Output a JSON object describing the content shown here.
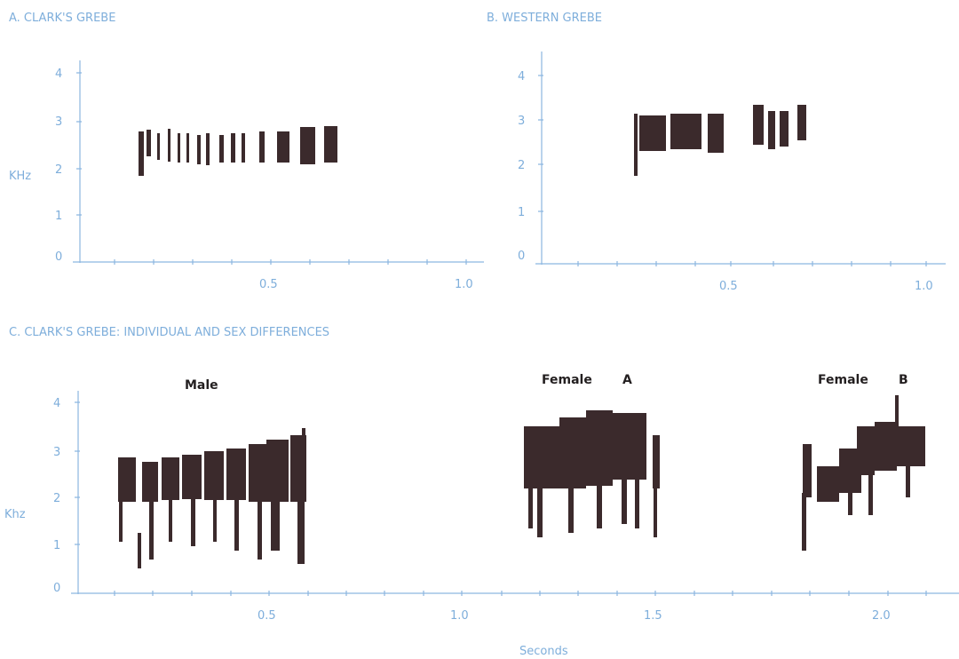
{
  "panels": [
    {
      "title": "A. CLARK'S GREBE",
      "y_label": "KHz",
      "y_ticks": [
        "4",
        "3",
        "2",
        "1",
        "0"
      ],
      "x_ticks": [
        "0.5",
        "1.0"
      ]
    },
    {
      "title": "B. WESTERN GREBE",
      "y_ticks": [
        "4",
        "3",
        "2",
        "1",
        "0"
      ],
      "x_ticks": [
        "0.5",
        "1.0"
      ]
    },
    {
      "title": "C. CLARK'S GREBE: INDIVIDUAL AND SEX DIFFERENCES",
      "y_label": "Khz",
      "y_ticks": [
        "4",
        "3",
        "2",
        "1",
        "0"
      ],
      "x_ticks": [
        "0.5",
        "1.0",
        "1.5",
        "2.0"
      ],
      "x_label": "Seconds",
      "labels": [
        "Male",
        "Female",
        "A",
        "Female",
        "B"
      ]
    }
  ]
}
